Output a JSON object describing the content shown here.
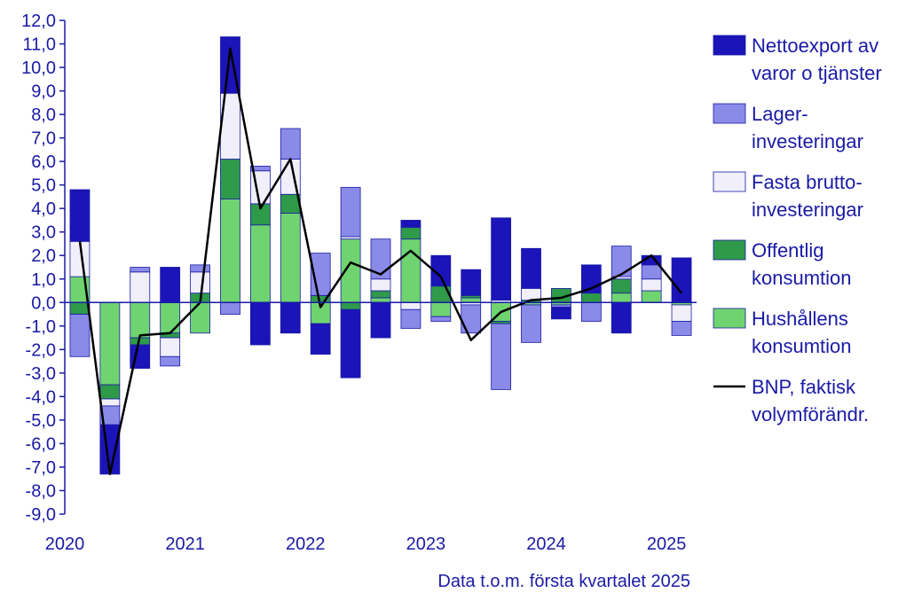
{
  "chart_data": {
    "type": "bar",
    "subtype": "stacked-bar-with-line",
    "ylim": [
      -9,
      12
    ],
    "yticks": [
      12,
      11,
      10,
      9,
      8,
      7,
      6,
      5,
      4,
      3,
      2,
      1,
      0,
      -1,
      -2,
      -3,
      -4,
      -5,
      -6,
      -7,
      -8,
      -9
    ],
    "ytick_labels": [
      "12,0",
      "11,0",
      "10,0",
      "9,0",
      "8,0",
      "7,0",
      "6,0",
      "5,0",
      "4,0",
      "3,0",
      "2,0",
      "1,0",
      "0,0",
      "-1,0",
      "-2,0",
      "-3,0",
      "-4,0",
      "-5,0",
      "-6,0",
      "-7,0",
      "-8,0",
      "-9,0"
    ],
    "year_labels": [
      "2020",
      "2021",
      "2022",
      "2023",
      "2024",
      "2025"
    ],
    "year_positions": [
      0,
      4,
      8,
      12,
      16,
      20
    ],
    "categories": [
      "2020K1",
      "2020K2",
      "2020K3",
      "2020K4",
      "2021K1",
      "2021K2",
      "2021K3",
      "2021K4",
      "2022K1",
      "2022K2",
      "2022K3",
      "2022K4",
      "2023K1",
      "2023K2",
      "2023K3",
      "2023K4",
      "2024K1",
      "2024K2",
      "2024K3",
      "2024K4",
      "2025K1"
    ],
    "note": "Data t.o.m. första kvartalet 2025",
    "series": [
      {
        "name": "Hushållens konsumtion",
        "legend_lines": [
          "Hushållens",
          "konsumtion"
        ],
        "color": "#6fd46f",
        "values": [
          1.1,
          -3.5,
          -1.5,
          -1.3,
          -1.3,
          4.4,
          3.3,
          3.8,
          -0.9,
          2.7,
          0.2,
          2.7,
          -0.6,
          0.2,
          -0.8,
          -0.1,
          -0.1,
          0.0,
          0.4,
          0.5,
          -0.1
        ]
      },
      {
        "name": "Offentlig konsumtion",
        "legend_lines": [
          "Offentlig",
          "konsumtion"
        ],
        "color": "#2e9a4a",
        "values": [
          -0.5,
          -0.6,
          -0.3,
          -0.2,
          0.4,
          1.7,
          0.9,
          0.8,
          0.3,
          -0.3,
          0.3,
          0.5,
          0.7,
          0.1,
          -0.1,
          0.1,
          0.6,
          0.4,
          0.6,
          0.0,
          0.0
        ]
      },
      {
        "name": "Fasta bruttoinvesteringar",
        "legend_lines": [
          "Fasta brutto-",
          "investeringar"
        ],
        "color": "#f0effa",
        "values": [
          1.5,
          -0.3,
          1.3,
          -0.8,
          0.9,
          2.8,
          1.4,
          1.5,
          0.0,
          0.1,
          0.5,
          -0.3,
          0.0,
          -0.1,
          0.1,
          0.5,
          0.0,
          0.0,
          0.1,
          0.5,
          -0.7
        ]
      },
      {
        "name": "Lagerinvesteringar",
        "legend_lines": [
          "Lager-",
          "investeringar"
        ],
        "color": "#8a8ae8",
        "values": [
          -1.8,
          -0.8,
          0.2,
          -0.4,
          0.3,
          -0.5,
          0.2,
          1.3,
          1.8,
          2.1,
          1.7,
          -0.8,
          -0.2,
          -1.2,
          -2.8,
          -1.6,
          -0.1,
          -0.8,
          1.3,
          0.6,
          -0.6
        ]
      },
      {
        "name": "Nettoexport av varor o tjänster",
        "legend_lines": [
          "Nettoexport av",
          "varor o tjänster"
        ],
        "color": "#1b14b8",
        "values": [
          2.2,
          -2.1,
          -1.0,
          1.5,
          0.0,
          2.4,
          -1.8,
          -1.3,
          -1.3,
          -2.9,
          -1.5,
          0.3,
          1.3,
          1.1,
          3.5,
          1.7,
          -0.5,
          1.2,
          -1.3,
          0.4,
          1.9
        ]
      }
    ],
    "line": {
      "name": "BNP, faktisk volymförändr.",
      "legend_lines": [
        "BNP, faktisk",
        "volymförändr."
      ],
      "color": "#000000",
      "values": [
        2.6,
        -7.3,
        -1.4,
        -1.3,
        0.0,
        10.8,
        4.0,
        6.1,
        -0.2,
        1.7,
        1.2,
        2.2,
        1.1,
        -1.6,
        -0.4,
        0.1,
        0.2,
        0.6,
        1.2,
        2.0,
        0.4
      ]
    },
    "legend_placement": "right",
    "legend_order": [
      "Nettoexport av varor o tjänster",
      "Lagerinvesteringar",
      "Fasta bruttoinvesteringar",
      "Offentlig konsumtion",
      "Hushållens konsumtion",
      "BNP, faktisk volymförändr."
    ]
  }
}
